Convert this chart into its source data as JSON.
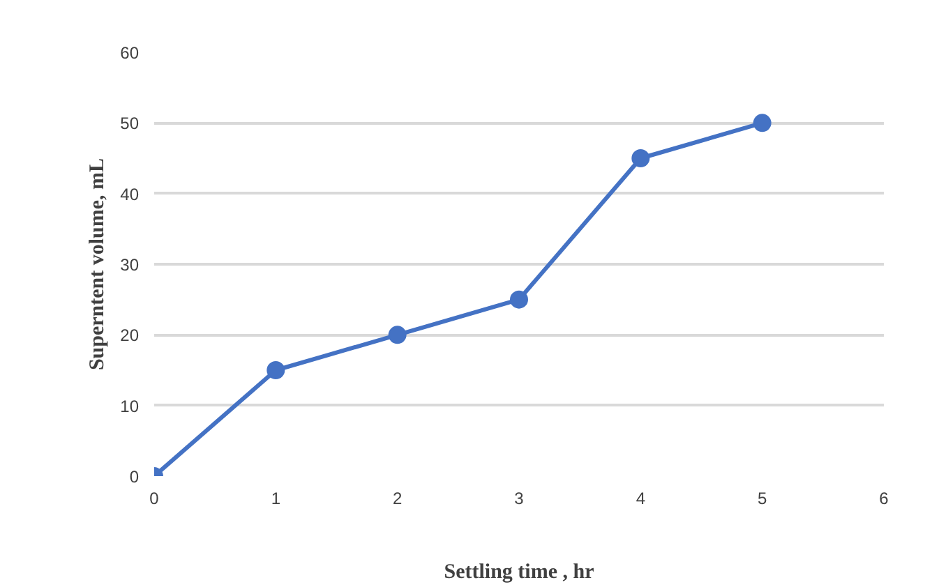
{
  "chart_data": {
    "type": "line",
    "xlabel": "Settling time , hr",
    "ylabel": "Superntent volume, mL",
    "x": [
      0,
      1,
      2,
      3,
      4,
      5
    ],
    "series": [
      {
        "color": "#4472c4",
        "values": [
          0,
          15,
          20,
          25,
          45,
          50
        ]
      }
    ],
    "xlim": [
      0,
      6
    ],
    "xticks": [
      0,
      1,
      2,
      3,
      4,
      5,
      6
    ],
    "ylim": [
      0,
      60
    ],
    "yticks": [
      0,
      10,
      20,
      30,
      40,
      50,
      60
    ],
    "grid": "y",
    "marker": "circle",
    "line_style": "solid"
  }
}
